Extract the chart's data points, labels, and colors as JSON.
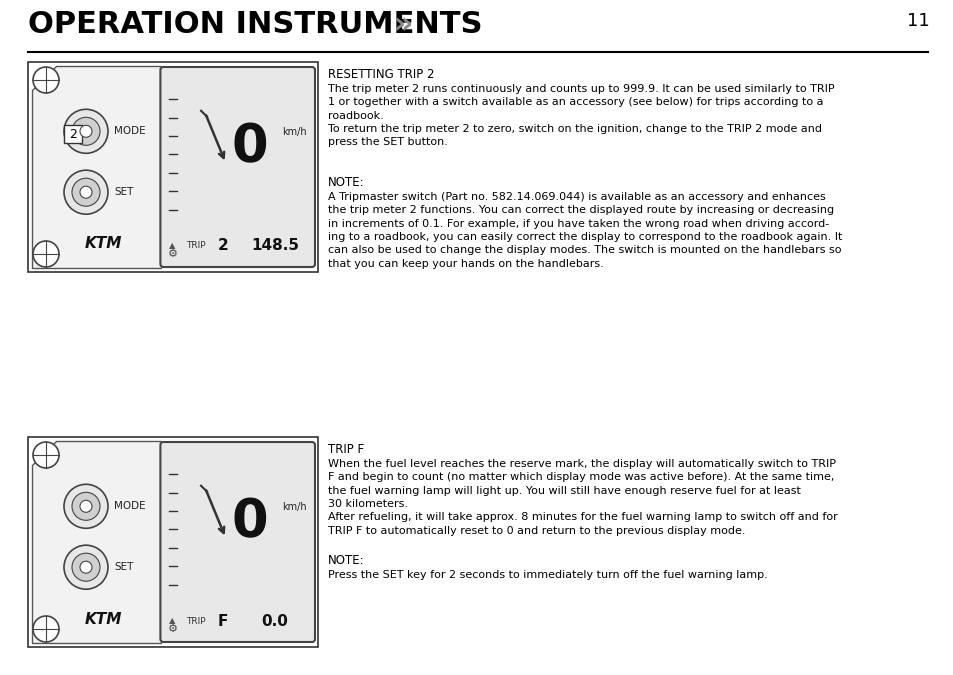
{
  "title": "OPERATION INSTRUMENTS",
  "title_arrows": " »",
  "page_number": "11",
  "background_color": "#ffffff",
  "section1_heading": "RESETTING TRIP 2",
  "section1_para1": "The trip meter 2 runs continuously and counts up to 999.9. It can be used similarly to TRIP\n1 or together with a switch available as an accessory (see below) for trips according to a\nroadbook.\nTo return the trip meter 2 to zero, switch on the ignition, change to the TRIP 2 mode and\npress the SET button.",
  "section1_note_heading": "NOTE:",
  "section1_note_body": "A Tripmaster switch (Part no. 582.14.069.044) is available as an accessory and enhances\nthe trip meter 2 functions. You can correct the displayed route by increasing or decreasing\nin increments of 0.1. For example, if you have taken the wrong road when driving accord-\ning to a roadbook, you can easily correct the display to correspond to the roadbook again. It\ncan also be used to change the display modes. The switch is mounted on the handlebars so\nthat you can keep your hands on the handlebars.",
  "section2_heading": "TRIP F",
  "section2_para1": "When the fuel level reaches the reserve mark, the display will automatically switch to TRIP\nF and begin to count (no matter which display mode was active before). At the same time,\nthe fuel warning lamp will light up. You will still have enough reserve fuel for at least\n30 kilometers.\nAfter refueling, it will take approx. 8 minutes for the fuel warning lamp to switch off and for\nTRIP F to automatically reset to 0 and return to the previous display mode.",
  "section2_note_heading": "NOTE:",
  "section2_note_body": "Press the SET key for 2 seconds to immediately turn off the fuel warning lamp.",
  "img1_display_big": "0",
  "img1_kmh": "km/h",
  "img1_trip_label": "TRIP",
  "img1_trip_num": "2",
  "img1_trip_val": "148.5",
  "img1_mode": "MODE",
  "img1_set": "SET",
  "img1_callout": "2",
  "img2_display_big": "0",
  "img2_kmh": "km/h",
  "img2_trip_label": "TRIP",
  "img2_trip_char": "F",
  "img2_trip_val": "0.0",
  "img2_mode": "MODE",
  "img2_set": "SET"
}
